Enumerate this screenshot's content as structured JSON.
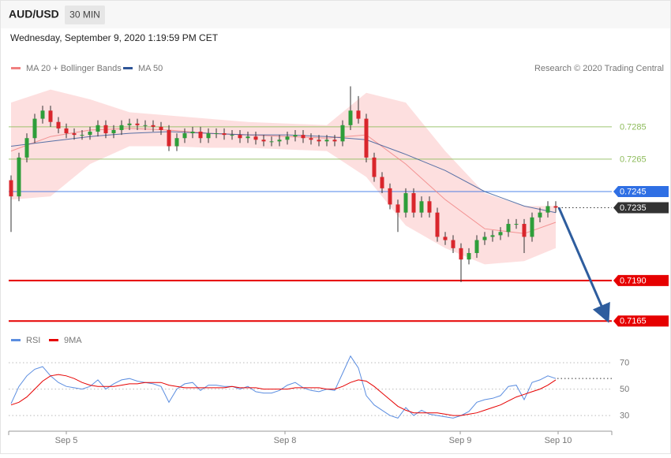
{
  "header": {
    "symbol": "AUD/USD",
    "interval": "30 MIN",
    "timestamp": "Wednesday, September 9, 2020 1:19:59 PM CET",
    "source": "Research © 2020 Trading Central"
  },
  "chart_data": [
    {
      "type": "candlestick",
      "up_color": "#2e9e3a",
      "down_color": "#d9262c",
      "xlim": [
        -0.3,
        76.1
      ],
      "xticks": [
        {
          "value": 7,
          "label": "Sep 5"
        },
        {
          "value": 34.7,
          "label": "Sep 8"
        },
        {
          "value": 56.9,
          "label": "Sep 9"
        },
        {
          "value": 69.3,
          "label": "Sep 10"
        }
      ],
      "ylim": [
        0.715,
        0.732
      ],
      "open": [
        0.7252,
        0.7242,
        0.7266,
        0.7278,
        0.729,
        0.7295,
        0.7288,
        0.7284,
        0.7281,
        0.728,
        0.728,
        0.7282,
        0.7286,
        0.7281,
        0.7283,
        0.7286,
        0.7287,
        0.7286,
        0.7286,
        0.7285,
        0.7283,
        0.7273,
        0.7278,
        0.7281,
        0.7282,
        0.7278,
        0.7281,
        0.7281,
        0.728,
        0.728,
        0.7278,
        0.7279,
        0.7277,
        0.7276,
        0.7276,
        0.7277,
        0.7279,
        0.728,
        0.7278,
        0.7277,
        0.7276,
        0.7277,
        0.7276,
        0.7286,
        0.7295,
        0.729,
        0.7266,
        0.7254,
        0.7247,
        0.7237,
        0.7232,
        0.7244,
        0.7232,
        0.7239,
        0.7232,
        0.7217,
        0.7215,
        0.721,
        0.7203,
        0.7207,
        0.7215,
        0.7217,
        0.7218,
        0.722,
        0.7225,
        0.7225,
        0.7217,
        0.7229,
        0.7232,
        0.7236
      ],
      "high": [
        0.7255,
        0.7269,
        0.7281,
        0.7293,
        0.7298,
        0.7298,
        0.7291,
        0.7287,
        0.7284,
        0.7283,
        0.7285,
        0.7289,
        0.7289,
        0.7286,
        0.7289,
        0.729,
        0.729,
        0.7289,
        0.7289,
        0.7288,
        0.7286,
        0.7281,
        0.7284,
        0.7285,
        0.7285,
        0.7284,
        0.7284,
        0.7284,
        0.7283,
        0.7283,
        0.7282,
        0.7282,
        0.728,
        0.7279,
        0.728,
        0.7282,
        0.7283,
        0.7283,
        0.7281,
        0.728,
        0.728,
        0.728,
        0.7289,
        0.731,
        0.7304,
        0.7293,
        0.7269,
        0.7257,
        0.725,
        0.724,
        0.7247,
        0.7247,
        0.7242,
        0.7242,
        0.7235,
        0.722,
        0.7218,
        0.7213,
        0.721,
        0.7218,
        0.722,
        0.7221,
        0.7223,
        0.7228,
        0.7228,
        0.7228,
        0.7232,
        0.7235,
        0.7239,
        0.7239
      ],
      "low": [
        0.722,
        0.7239,
        0.7263,
        0.7275,
        0.7287,
        0.7285,
        0.7281,
        0.7278,
        0.7277,
        0.7277,
        0.7277,
        0.7279,
        0.7278,
        0.7278,
        0.728,
        0.7283,
        0.7283,
        0.7283,
        0.7282,
        0.728,
        0.727,
        0.727,
        0.7275,
        0.7278,
        0.7275,
        0.7275,
        0.7278,
        0.7277,
        0.7277,
        0.7275,
        0.7275,
        0.7274,
        0.7273,
        0.7273,
        0.7273,
        0.7274,
        0.7276,
        0.7275,
        0.7274,
        0.7273,
        0.7273,
        0.7273,
        0.7273,
        0.7283,
        0.7287,
        0.7263,
        0.7251,
        0.7244,
        0.7234,
        0.722,
        0.7229,
        0.7229,
        0.7229,
        0.7229,
        0.7214,
        0.7212,
        0.7207,
        0.7189,
        0.72,
        0.7204,
        0.7212,
        0.7214,
        0.7215,
        0.7217,
        0.7222,
        0.7207,
        0.7214,
        0.7226,
        0.7229,
        0.7232
      ],
      "close": [
        0.7242,
        0.7266,
        0.7278,
        0.729,
        0.7295,
        0.7288,
        0.7284,
        0.7281,
        0.728,
        0.728,
        0.7282,
        0.7286,
        0.7281,
        0.7283,
        0.7286,
        0.7287,
        0.7286,
        0.7286,
        0.7285,
        0.7283,
        0.7273,
        0.7278,
        0.7281,
        0.7282,
        0.7278,
        0.7281,
        0.7281,
        0.728,
        0.728,
        0.7278,
        0.7279,
        0.7277,
        0.7276,
        0.7276,
        0.7277,
        0.7279,
        0.728,
        0.7278,
        0.7277,
        0.7276,
        0.7277,
        0.7276,
        0.7286,
        0.7295,
        0.729,
        0.7266,
        0.7254,
        0.7247,
        0.7237,
        0.7232,
        0.7244,
        0.7232,
        0.7239,
        0.7232,
        0.7217,
        0.7215,
        0.721,
        0.7203,
        0.7207,
        0.7215,
        0.7217,
        0.7218,
        0.722,
        0.7225,
        0.7225,
        0.7217,
        0.7229,
        0.7232,
        0.7236,
        0.7235
      ],
      "series": [
        {
          "name": "MA 20 + Bollinger Bands",
          "color": "#f08080",
          "band_color": "#fdd9d9",
          "x": [
            0,
            5,
            10,
            15,
            20,
            25,
            30,
            35,
            40,
            45,
            50,
            55,
            60,
            65,
            69
          ],
          "values": [
            0.727,
            0.7279,
            0.7283,
            0.7284,
            0.7283,
            0.7281,
            0.728,
            0.7279,
            0.7278,
            0.728,
            0.7262,
            0.724,
            0.7222,
            0.7219,
            0.7226
          ],
          "upper": [
            0.73,
            0.7308,
            0.7302,
            0.7294,
            0.7292,
            0.729,
            0.7288,
            0.7287,
            0.7286,
            0.7306,
            0.73,
            0.727,
            0.7244,
            0.7236,
            0.7236
          ],
          "lower": [
            0.724,
            0.7242,
            0.7262,
            0.7273,
            0.7273,
            0.7272,
            0.7272,
            0.7271,
            0.727,
            0.7254,
            0.7224,
            0.721,
            0.72,
            0.7202,
            0.721
          ]
        },
        {
          "name": "MA 50",
          "color": "#2f5597",
          "x": [
            0,
            5,
            10,
            15,
            20,
            25,
            30,
            35,
            40,
            45,
            50,
            55,
            60,
            65,
            69
          ],
          "values": [
            0.7273,
            0.7276,
            0.7279,
            0.7281,
            0.7282,
            0.7281,
            0.728,
            0.728,
            0.7279,
            0.7277,
            0.7268,
            0.7258,
            0.7245,
            0.7236,
            0.7232
          ]
        }
      ],
      "levels": [
        {
          "value": 0.7285,
          "color": "#8dbb5a",
          "line": "thin",
          "tag": "text"
        },
        {
          "value": 0.7265,
          "color": "#8dbb5a",
          "line": "thin",
          "tag": "text"
        },
        {
          "value": 0.7245,
          "color": "#2f6fe4",
          "line": "thin",
          "tag": "box"
        },
        {
          "value": 0.7235,
          "color": "#333333",
          "line": "dotted",
          "tag": "box"
        },
        {
          "value": 0.719,
          "label": "0.7190",
          "color": "#e60000",
          "line": "bold",
          "tag": "box"
        },
        {
          "value": 0.7165,
          "color": "#e60000",
          "line": "bold",
          "tag": "box"
        }
      ]
    },
    {
      "type": "line",
      "ylim": [
        19,
        79
      ],
      "yticks": [
        30,
        50,
        70
      ],
      "grid": true,
      "series": [
        {
          "name": "RSI",
          "color": "#5b8de0",
          "values": [
            39,
            52,
            60,
            65,
            67,
            60,
            55,
            52,
            51,
            50,
            52,
            57,
            50,
            54,
            57,
            58,
            56,
            55,
            54,
            52,
            40,
            50,
            54,
            55,
            49,
            53,
            53,
            52,
            52,
            50,
            52,
            48,
            47,
            47,
            49,
            53,
            55,
            51,
            49,
            48,
            50,
            49,
            62,
            75,
            66,
            45,
            38,
            34,
            30,
            28,
            36,
            30,
            34,
            31,
            30,
            29,
            28,
            30,
            33,
            40,
            42,
            43,
            45,
            52,
            53,
            42,
            55,
            57,
            60,
            58
          ]
        },
        {
          "name": "9MA",
          "color": "#e60000",
          "values": [
            38,
            40,
            44,
            50,
            56,
            60,
            61,
            60,
            58,
            55,
            53,
            52,
            52,
            52,
            53,
            54,
            54,
            55,
            55,
            55,
            53,
            52,
            51,
            51,
            51,
            51,
            51,
            51,
            52,
            51,
            51,
            51,
            50,
            50,
            50,
            50,
            51,
            51,
            51,
            51,
            50,
            50,
            52,
            55,
            57,
            56,
            52,
            47,
            42,
            37,
            34,
            32,
            32,
            32,
            32,
            31,
            30,
            30,
            31,
            32,
            34,
            36,
            38,
            41,
            44,
            46,
            48,
            50,
            53,
            57
          ]
        }
      ]
    }
  ]
}
